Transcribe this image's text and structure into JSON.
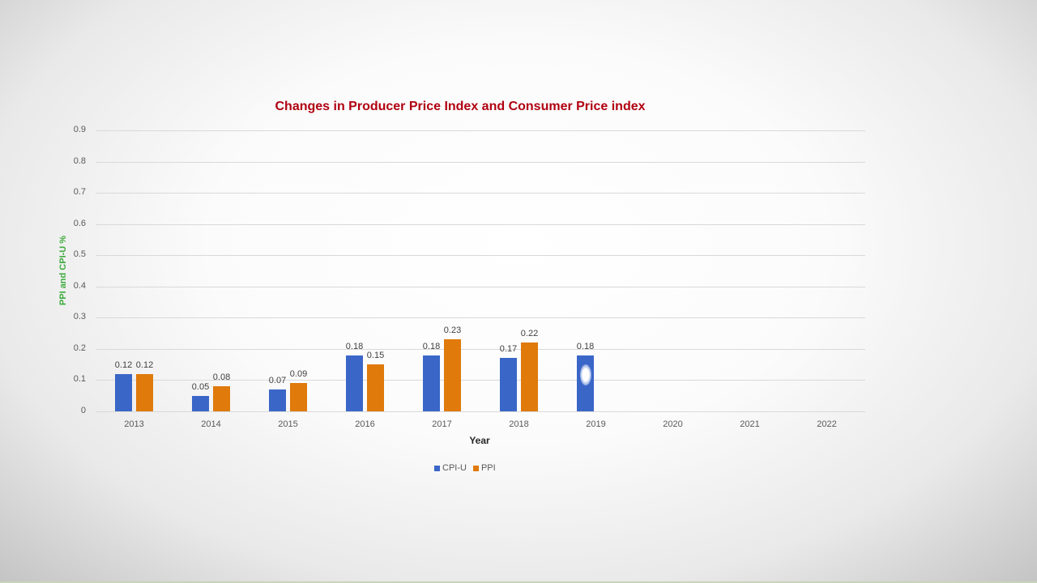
{
  "chart_data": {
    "type": "bar",
    "title": "Changes in Producer Price Index and Consumer Price index",
    "xlabel": "Year",
    "ylabel": "PPI and CPI-U %",
    "ylim": [
      0,
      0.9
    ],
    "yticks": [
      "0",
      "0.1",
      "0.2",
      "0.3",
      "0.4",
      "0.5",
      "0.6",
      "0.7",
      "0.8",
      "0.9"
    ],
    "grid": true,
    "legend_position": "bottom",
    "categories": [
      "2013",
      "2014",
      "2015",
      "2016",
      "2017",
      "2018",
      "2019",
      "2020",
      "2021",
      "2022"
    ],
    "series": [
      {
        "name": "CPI-U",
        "color": "#3a66c8",
        "values": [
          0.12,
          0.05,
          0.07,
          0.18,
          0.18,
          0.17,
          0.18,
          null,
          null,
          null
        ]
      },
      {
        "name": "PPI",
        "color": "#df7a0b",
        "values": [
          0.12,
          0.08,
          0.09,
          0.15,
          0.23,
          0.22,
          null,
          null,
          null,
          null
        ]
      }
    ],
    "data_labels": {
      "CPI-U": [
        "0.12",
        "0.05",
        "0.07",
        "0.18",
        "0.18",
        "0.17",
        "0.18"
      ],
      "PPI": [
        "0.12",
        "0.08",
        "0.09",
        "0.15",
        "0.23",
        "0.22"
      ]
    }
  },
  "colors": {
    "title": "#b00010",
    "ylabel": "#3dab3d",
    "cpi": "#3a66c8",
    "ppi": "#df7a0b"
  }
}
